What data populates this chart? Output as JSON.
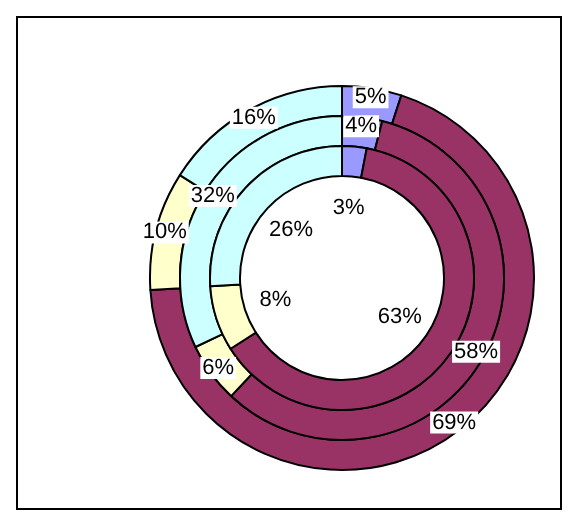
{
  "chart_data": {
    "type": "donut",
    "categories": [
      null,
      null,
      null,
      null
    ],
    "colors": [
      "#9999ff",
      "#993366",
      "#ffffcc",
      "#ccffff"
    ],
    "series": [
      {
        "values": [
          5,
          69,
          10,
          16
        ],
        "value_labels": [
          "5%",
          "69%",
          "10%",
          "16%"
        ]
      },
      {
        "values": [
          4,
          58,
          6,
          32
        ],
        "value_labels": [
          "4%",
          "58%",
          "6%",
          "32%"
        ]
      },
      {
        "values": [
          3,
          63,
          8,
          26
        ],
        "value_labels": [
          "3%",
          "63%",
          "8%",
          "26%"
        ]
      }
    ]
  }
}
